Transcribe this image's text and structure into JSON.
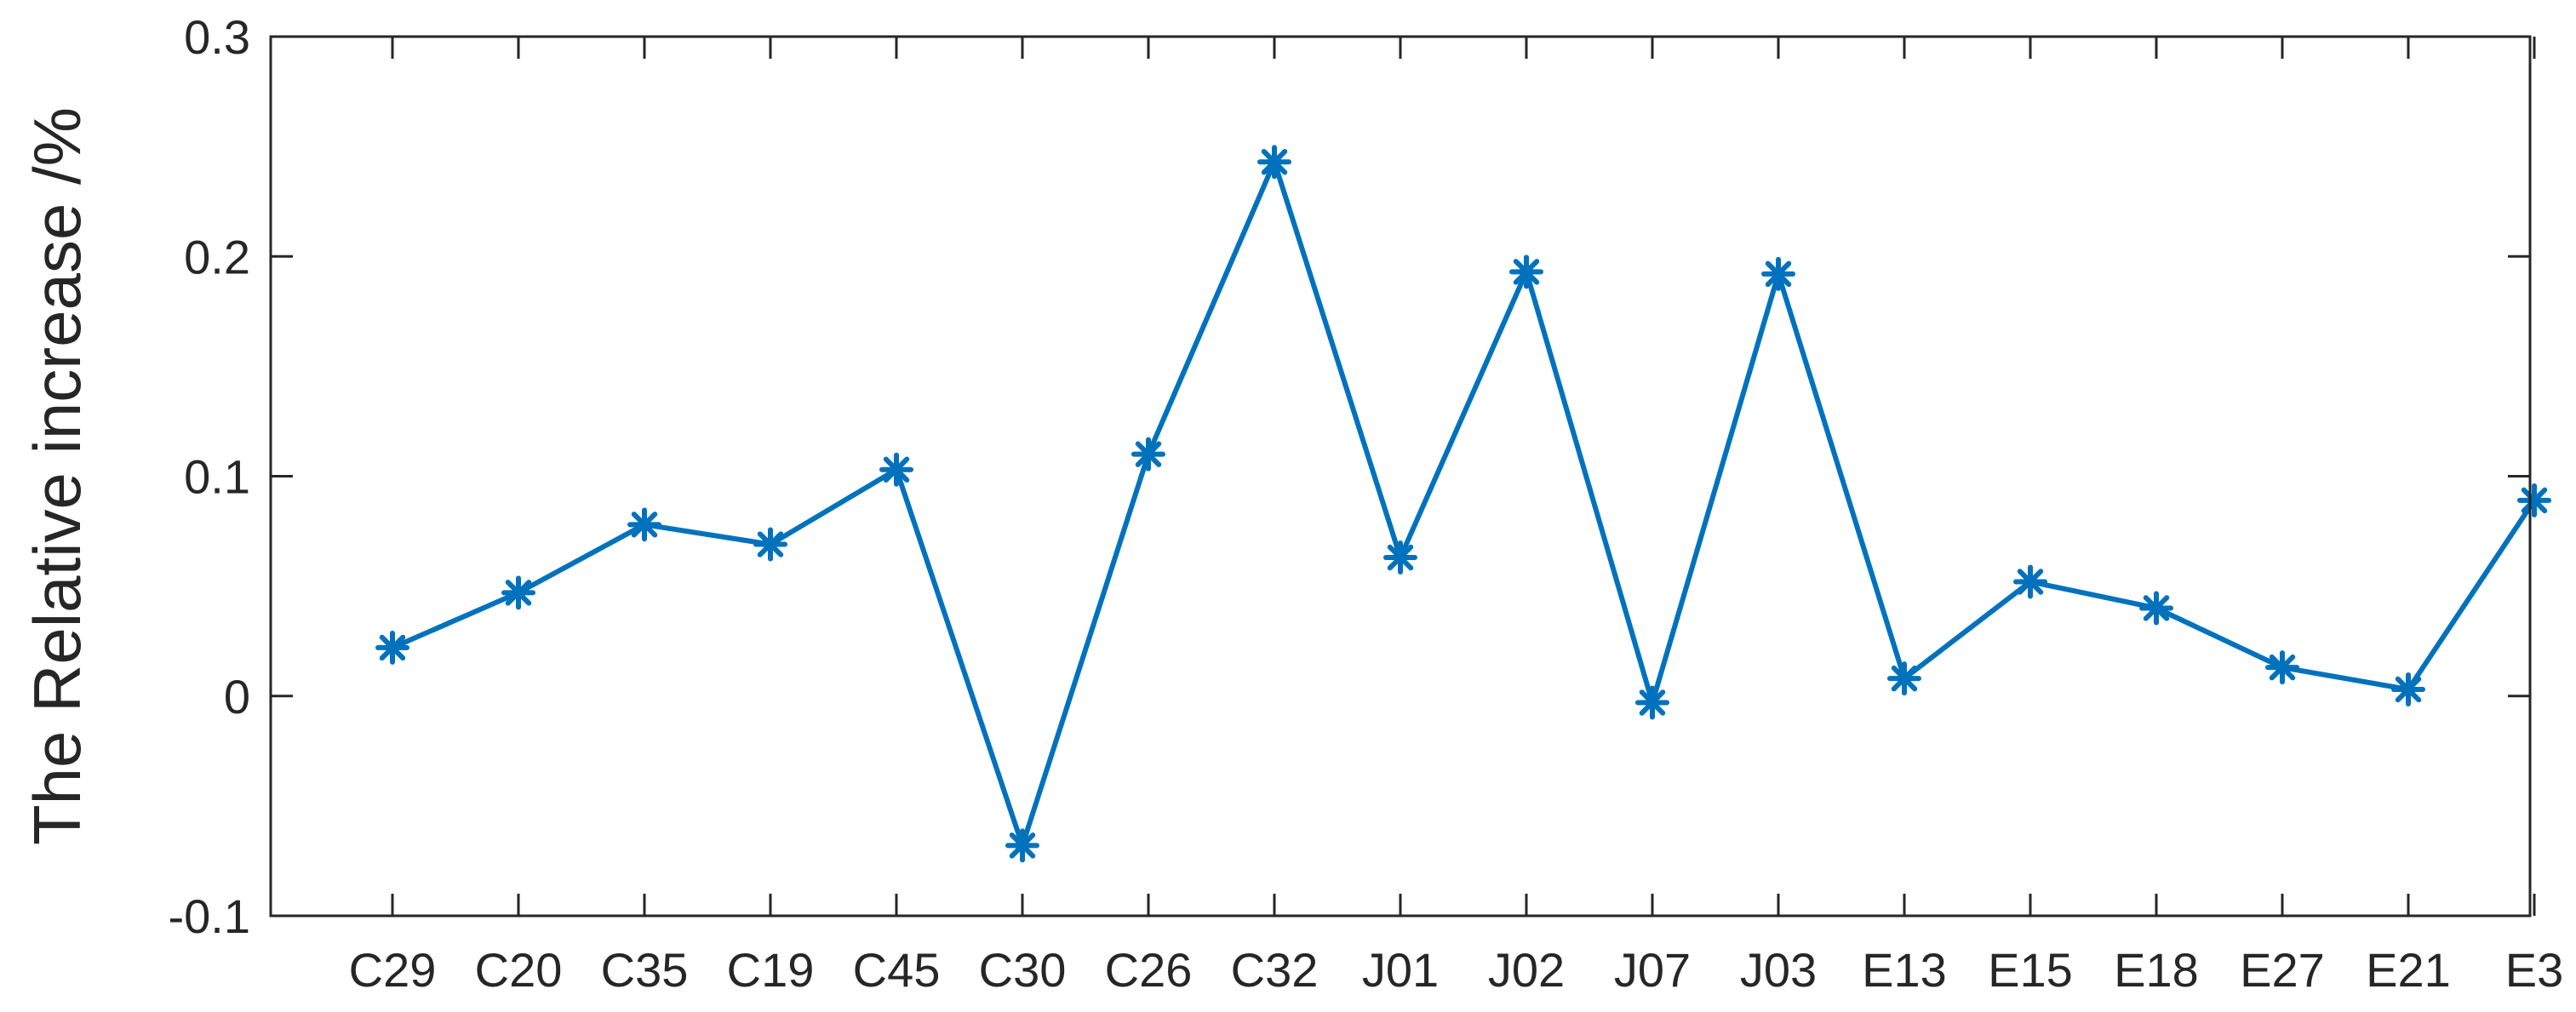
{
  "chart_data": {
    "type": "line",
    "title": "",
    "xlabel": "",
    "ylabel": "The Relative increase /%",
    "categories": [
      "C29",
      "C20",
      "C35",
      "C19",
      "C45",
      "C30",
      "C26",
      "C32",
      "J01",
      "J02",
      "J07",
      "J03",
      "E13",
      "E15",
      "E18",
      "E27",
      "E21",
      "E3"
    ],
    "series": [
      {
        "values": [
          0.022,
          0.047,
          0.078,
          0.069,
          0.103,
          -0.068,
          0.11,
          0.243,
          0.063,
          0.193,
          -0.003,
          0.192,
          0.008,
          0.052,
          0.04,
          0.013,
          0.003,
          0.089
        ],
        "color": "#0072BD",
        "marker": "asterisk"
      }
    ],
    "ylim": [
      -0.1,
      0.3
    ],
    "yticks": [
      -0.1,
      0,
      0.1,
      0.2,
      0.3
    ],
    "ytick_labels": [
      "-0.1",
      "0",
      "0.1",
      "0.2",
      "0.3"
    ],
    "grid": false,
    "box": true
  }
}
